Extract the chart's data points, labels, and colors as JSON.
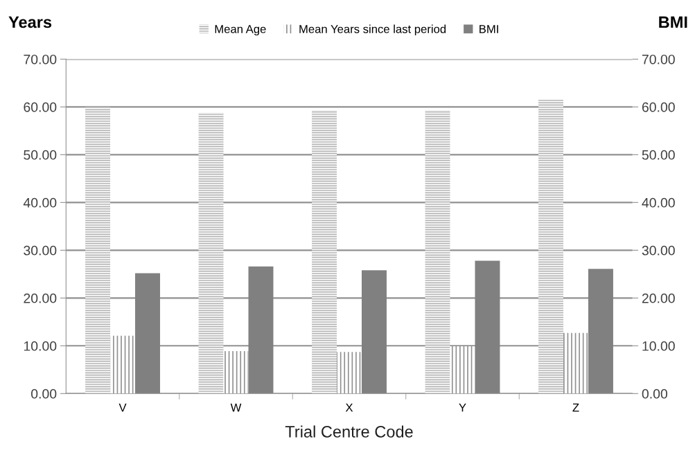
{
  "chart_data": {
    "type": "bar",
    "xlabel": "Trial Centre Code",
    "ylabel": "Years",
    "y2label": "BMI",
    "categories": [
      "V",
      "W",
      "X",
      "Y",
      "Z"
    ],
    "series": [
      {
        "name": "Mean Age",
        "color": "#b4b4b4",
        "values": [
          60.0,
          58.8,
          59.3,
          59.3,
          61.6
        ]
      },
      {
        "name": "Mean Years since last period",
        "color": "#909090",
        "values": [
          12.1,
          8.9,
          8.7,
          9.9,
          12.7
        ]
      },
      {
        "name": "BMI",
        "color": "#808080",
        "axis": "y2",
        "values": [
          25.2,
          26.6,
          25.8,
          27.8,
          26.1
        ]
      }
    ],
    "ylim": [
      0,
      70
    ],
    "yticks": [
      {
        "value": 0,
        "label": "0.00"
      },
      {
        "value": 10,
        "label": "10.00"
      },
      {
        "value": 20,
        "label": "20.00"
      },
      {
        "value": 30,
        "label": "30.00"
      },
      {
        "value": 40,
        "label": "40.00"
      },
      {
        "value": 50,
        "label": "50.00"
      },
      {
        "value": 60,
        "label": "60.00"
      },
      {
        "value": 70,
        "label": "70.00"
      }
    ],
    "y2lim": [
      0,
      70
    ],
    "y2ticks": [
      {
        "value": 0,
        "label": "0.00"
      },
      {
        "value": 10,
        "label": "10.00"
      },
      {
        "value": 20,
        "label": "20.00"
      },
      {
        "value": 30,
        "label": "30.00"
      },
      {
        "value": 40,
        "label": "40.00"
      },
      {
        "value": 50,
        "label": "50.00"
      },
      {
        "value": 60,
        "label": "60.00"
      },
      {
        "value": 70,
        "label": "70.00"
      }
    ],
    "grid": "y",
    "legend": "top"
  }
}
